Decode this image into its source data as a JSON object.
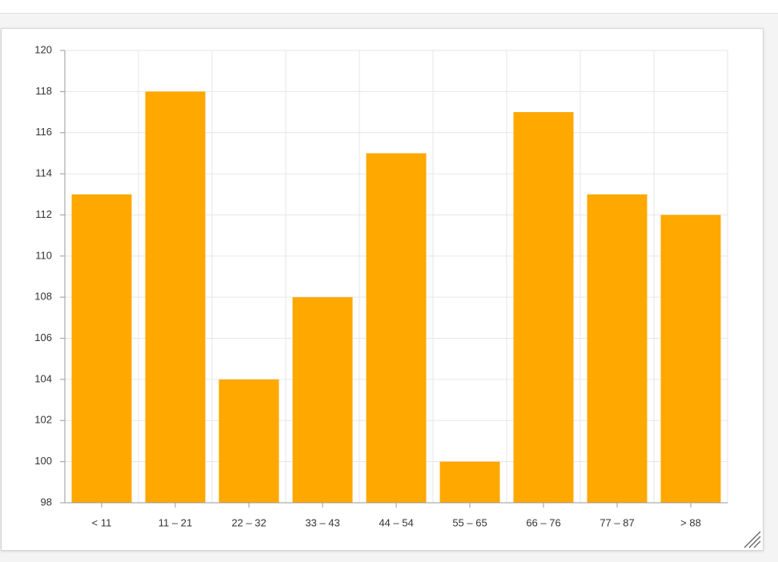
{
  "chart_data": {
    "type": "bar",
    "categories": [
      "< 11",
      "11 – 21",
      "22 – 32",
      "33 – 43",
      "44 – 54",
      "55 – 65",
      "66 – 76",
      "77 – 87",
      "> 88"
    ],
    "values": [
      113,
      118,
      104,
      108,
      115,
      100,
      117,
      113,
      112
    ],
    "color": "#ffa800",
    "ylim": [
      98,
      120
    ],
    "yticks": [
      98,
      100,
      102,
      104,
      106,
      108,
      110,
      112,
      114,
      116,
      118,
      120
    ],
    "grid": true
  }
}
